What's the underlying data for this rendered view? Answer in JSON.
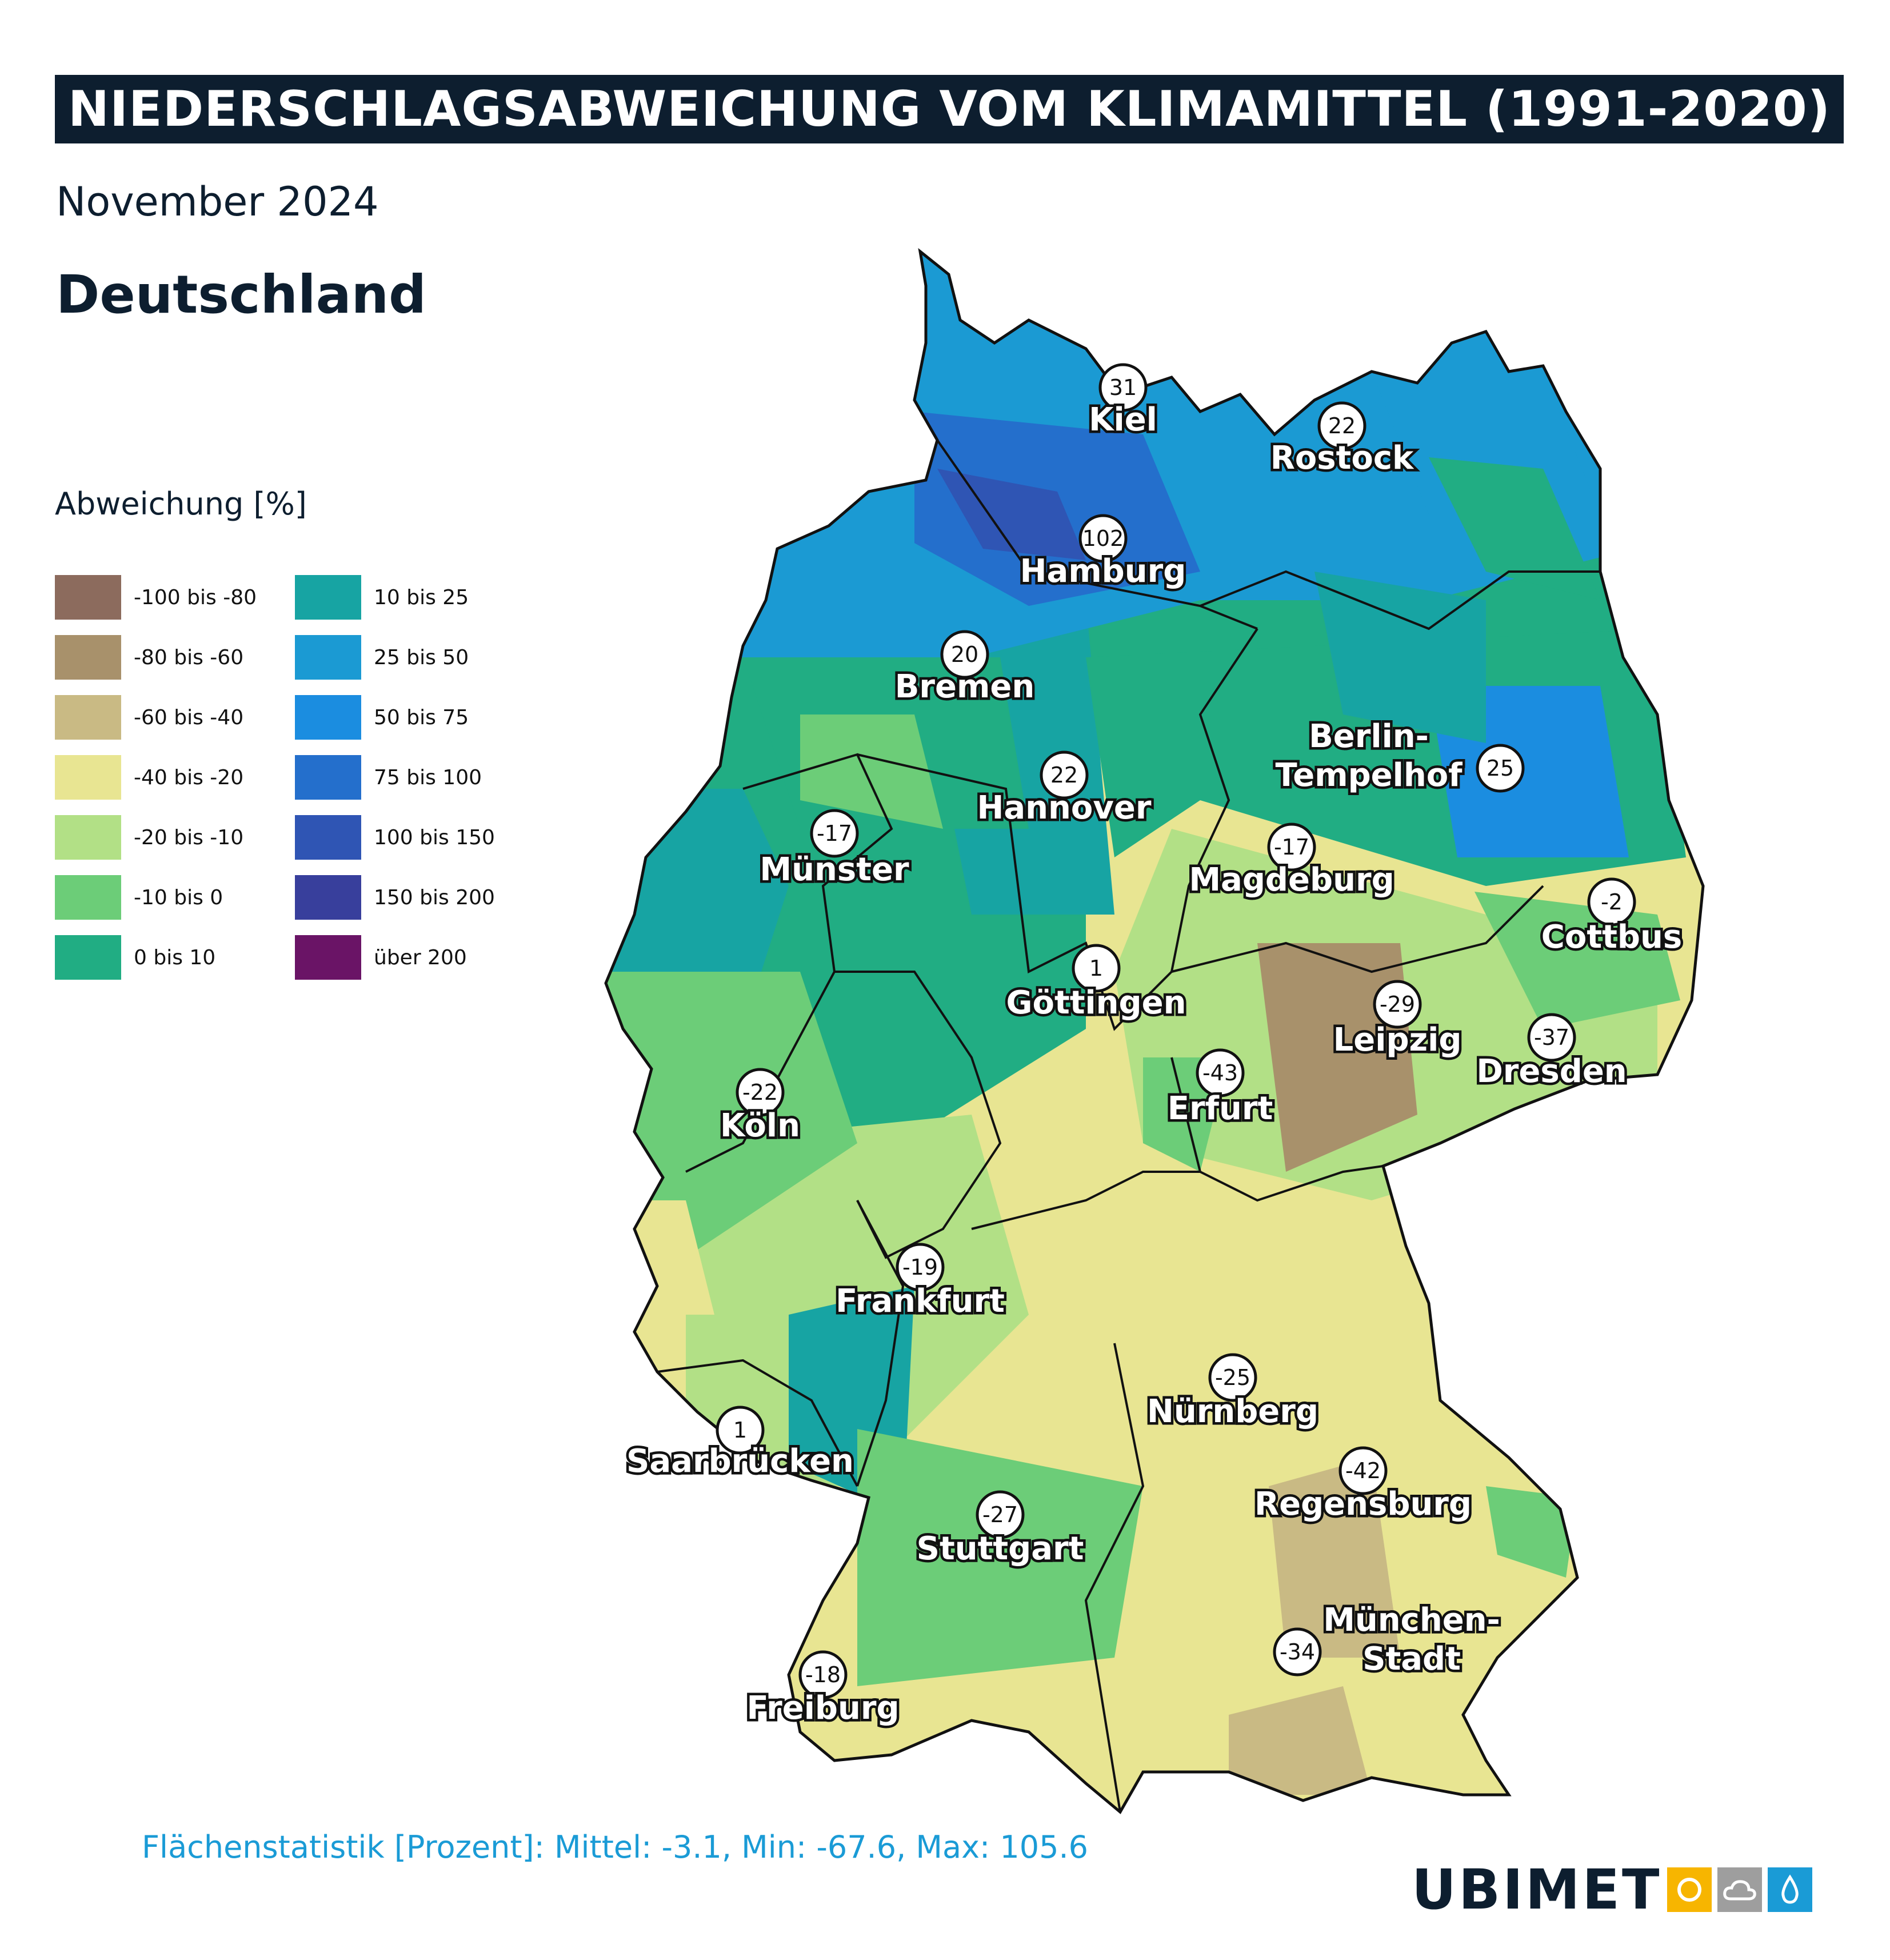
{
  "header": {
    "title": "NIEDERSCHLAGSABWEICHUNG VOM KLIMAMITTEL (1991-2020)",
    "subtitle": "November 2024",
    "region": "Deutschland"
  },
  "legend": {
    "title": "Abweichung [%]",
    "items": [
      {
        "label": "-100 bis -80",
        "color": "#8c6b5d"
      },
      {
        "label": "-80 bis -60",
        "color": "#a8916b"
      },
      {
        "label": "-60 bis -40",
        "color": "#c9ba84"
      },
      {
        "label": "-40 bis -20",
        "color": "#e8e592"
      },
      {
        "label": "-20 bis -10",
        "color": "#b2e086"
      },
      {
        "label": "-10 bis 0",
        "color": "#6ccd78"
      },
      {
        "label": "0 bis 10",
        "color": "#21ad83"
      },
      {
        "label": "10 bis 25",
        "color": "#17a4a3"
      },
      {
        "label": "25 bis 50",
        "color": "#1b9ad3"
      },
      {
        "label": "50 bis 75",
        "color": "#1b8de0"
      },
      {
        "label": "75 bis 100",
        "color": "#246fcc"
      },
      {
        "label": "100 bis 150",
        "color": "#2f55b4"
      },
      {
        "label": "150 bis 200",
        "color": "#383f9c"
      },
      {
        "label": "über 200",
        "color": "#6a1466"
      }
    ]
  },
  "cities": [
    {
      "name": "Kiel",
      "value": "31"
    },
    {
      "name": "Rostock",
      "value": "22"
    },
    {
      "name": "Hamburg",
      "value": "102"
    },
    {
      "name": "Bremen",
      "value": "20"
    },
    {
      "name": "Hannover",
      "value": "22"
    },
    {
      "name": "Berlin-",
      "name2": "Tempelhof",
      "value": "25"
    },
    {
      "name": "Münster",
      "value": "-17"
    },
    {
      "name": "Magdeburg",
      "value": "-17"
    },
    {
      "name": "Cottbus",
      "value": "-2"
    },
    {
      "name": "Göttingen",
      "value": "1"
    },
    {
      "name": "Leipzig",
      "value": "-29"
    },
    {
      "name": "Dresden",
      "value": "-37"
    },
    {
      "name": "Erfurt",
      "value": "-43"
    },
    {
      "name": "Köln",
      "value": "-22"
    },
    {
      "name": "Frankfurt",
      "value": "-19"
    },
    {
      "name": "Nürnberg",
      "value": "-25"
    },
    {
      "name": "Saarbrücken",
      "value": "1"
    },
    {
      "name": "Regensburg",
      "value": "-42"
    },
    {
      "name": "Stuttgart",
      "value": "-27"
    },
    {
      "name": "München-",
      "name2": "Stadt",
      "value": "-34"
    },
    {
      "name": "Freiburg",
      "value": "-18"
    }
  ],
  "footer": {
    "statistics": "Flächenstatistik [Prozent]: Mittel: -3.1, Min: -67.6, Max: 105.6"
  },
  "logo": {
    "text": "UBIMET",
    "icons": [
      "sun-icon",
      "cloud-icon",
      "drop-icon"
    ],
    "icon_colors": [
      "#f7b500",
      "#9e9e9e",
      "#1a9bd6"
    ]
  }
}
